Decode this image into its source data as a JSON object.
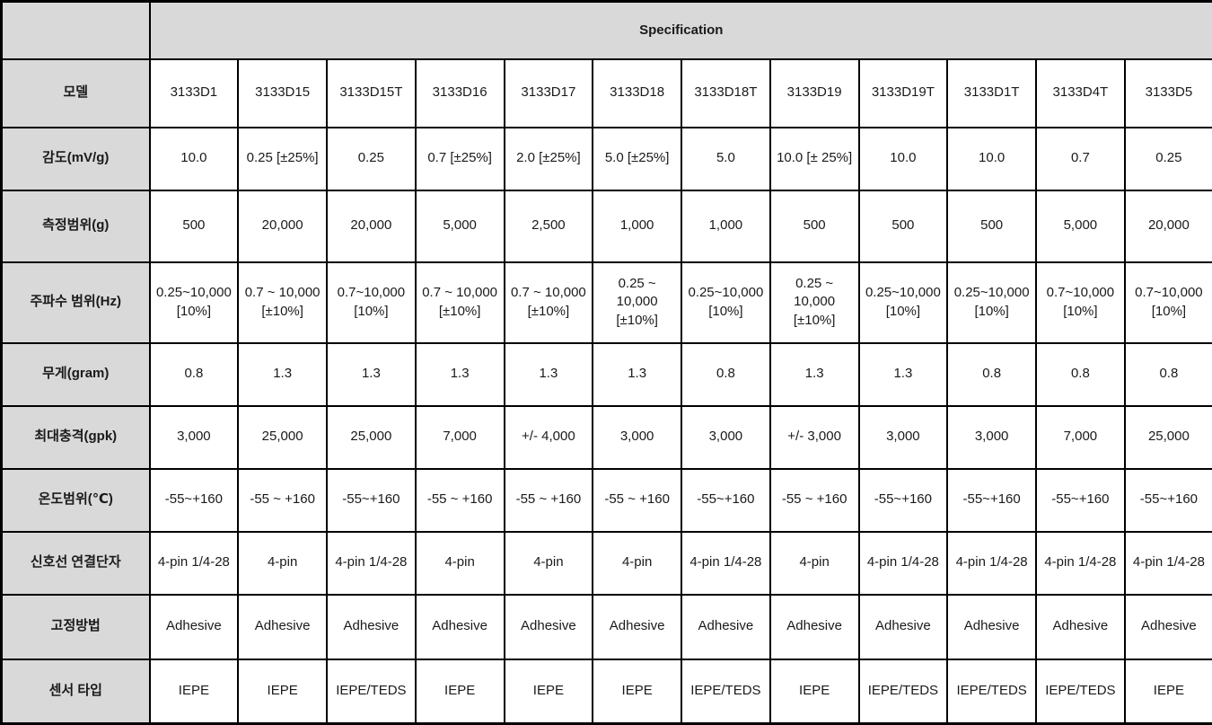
{
  "header": {
    "spec_label": "Specification"
  },
  "colors": {
    "header_bg": "#d9d9d9",
    "cell_bg": "#ffffff",
    "border": "#000000",
    "text": "#1a1a1a"
  },
  "table": {
    "spec_header": "Specification",
    "rows": [
      {
        "label": "모델",
        "values": [
          "3133D1",
          "3133D15",
          "3133D15T",
          "3133D16",
          "3133D17",
          "3133D18",
          "3133D18T",
          "3133D19",
          "3133D19T",
          "3133D1T",
          "3133D4T",
          "3133D5"
        ]
      },
      {
        "label": "감도(mV/g)",
        "values": [
          "10.0",
          "0.25 [±25%]",
          "0.25",
          "0.7 [±25%]",
          "2.0 [±25%]",
          "5.0 [±25%]",
          "5.0",
          "10.0 [± 25%]",
          "10.0",
          "10.0",
          "0.7",
          "0.25"
        ]
      },
      {
        "label": "측정범위(g)",
        "values": [
          "500",
          "20,000",
          "20,000",
          "5,000",
          "2,500",
          "1,000",
          "1,000",
          "500",
          "500",
          "500",
          "5,000",
          "20,000"
        ]
      },
      {
        "label": "주파수 범위(Hz)",
        "values": [
          "0.25~10,000 [10%]",
          "0.7 ~ 10,000 [±10%]",
          "0.7~10,000 [10%]",
          "0.7 ~ 10,000 [±10%]",
          "0.7 ~ 10,000 [±10%]",
          "0.25 ~ 10,000 [±10%]",
          "0.25~10,000 [10%]",
          "0.25 ~ 10,000 [±10%]",
          "0.25~10,000 [10%]",
          "0.25~10,000 [10%]",
          "0.7~10,000 [10%]",
          "0.7~10,000 [10%]"
        ]
      },
      {
        "label": "무게(gram)",
        "values": [
          "0.8",
          "1.3",
          "1.3",
          "1.3",
          "1.3",
          "1.3",
          "0.8",
          "1.3",
          "1.3",
          "0.8",
          "0.8",
          "0.8"
        ]
      },
      {
        "label": "최대충격(gpk)",
        "values": [
          "3,000",
          "25,000",
          "25,000",
          "7,000",
          "+/- 4,000",
          "3,000",
          "3,000",
          "+/- 3,000",
          "3,000",
          "3,000",
          "7,000",
          "25,000"
        ]
      },
      {
        "label": "온도범위(℃)",
        "values": [
          "-55~+160",
          "-55 ~ +160",
          "-55~+160",
          "-55 ~ +160",
          "-55 ~ +160",
          "-55 ~ +160",
          "-55~+160",
          "-55 ~ +160",
          "-55~+160",
          "-55~+160",
          "-55~+160",
          "-55~+160"
        ]
      },
      {
        "label": "신호선 연결단자",
        "values": [
          "4-pin 1/4-28",
          "4-pin",
          "4-pin 1/4-28",
          "4-pin",
          "4-pin",
          "4-pin",
          "4-pin 1/4-28",
          "4-pin",
          "4-pin 1/4-28",
          "4-pin 1/4-28",
          "4-pin 1/4-28",
          "4-pin 1/4-28"
        ]
      },
      {
        "label": "고정방법",
        "values": [
          "Adhesive",
          "Adhesive",
          "Adhesive",
          "Adhesive",
          "Adhesive",
          "Adhesive",
          "Adhesive",
          "Adhesive",
          "Adhesive",
          "Adhesive",
          "Adhesive",
          "Adhesive"
        ]
      },
      {
        "label": "센서 타입",
        "values": [
          "IEPE",
          "IEPE",
          "IEPE/TEDS",
          "IEPE",
          "IEPE",
          "IEPE",
          "IEPE/TEDS",
          "IEPE",
          "IEPE/TEDS",
          "IEPE/TEDS",
          "IEPE/TEDS",
          "IEPE"
        ]
      }
    ]
  }
}
